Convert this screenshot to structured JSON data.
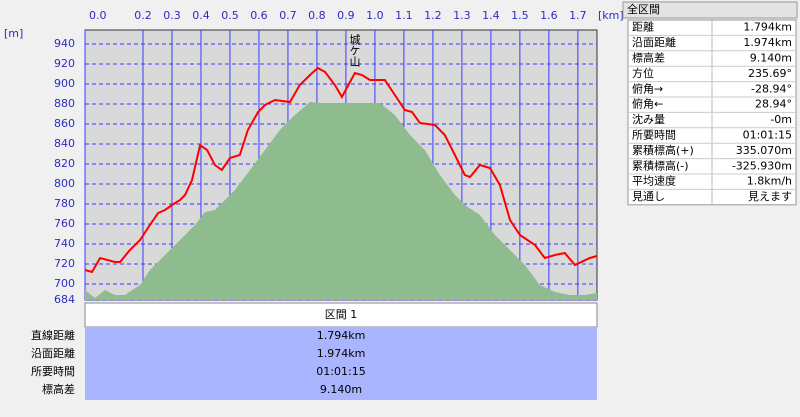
{
  "chart_data": {
    "type": "line",
    "x_unit_label": "[km]",
    "y_unit_label": "[m]",
    "annotation": "城ケ山",
    "grid": true,
    "xlim": [
      0,
      1.766
    ],
    "ylim": [
      684,
      954
    ],
    "xticks": [
      {
        "value": 0,
        "label": "0.0"
      },
      0.2,
      0.3,
      0.4,
      0.5,
      0.6,
      0.7,
      0.8,
      0.9,
      {
        "value": 1,
        "label": "1.0"
      },
      1.1,
      1.2,
      1.3,
      1.4,
      1.5,
      1.6,
      1.7
    ],
    "yticks": [
      684,
      700,
      720,
      740,
      760,
      780,
      800,
      820,
      840,
      860,
      880,
      900,
      920,
      940
    ],
    "series": [
      {
        "type": "area",
        "color": "#8fbc8f",
        "x": [
          0,
          0.034,
          0.069,
          0.103,
          0.138,
          0.19,
          0.224,
          0.276,
          0.328,
          0.379,
          0.414,
          0.448,
          0.483,
          0.517,
          0.569,
          0.621,
          0.672,
          0.724,
          0.776,
          0.81,
          0.879,
          1.017,
          1.069,
          1.121,
          1.172,
          1.224,
          1.276,
          1.31,
          1.362,
          1.414,
          1.466,
          1.517,
          1.569,
          1.621,
          1.672,
          1.724,
          1.766
        ],
        "values": [
          694,
          686,
          694,
          689,
          689,
          699,
          714,
          729,
          744,
          759,
          772,
          774,
          784,
          794,
          814,
          834,
          854,
          869,
          882,
          881,
          881,
          881,
          869,
          849,
          834,
          809,
          789,
          779,
          769,
          749,
          734,
          719,
          699,
          692,
          689,
          689,
          691
        ]
      },
      {
        "type": "line",
        "color": "#ff0000",
        "x": [
          0,
          0.024,
          0.052,
          0.103,
          0.121,
          0.155,
          0.19,
          0.224,
          0.252,
          0.276,
          0.3,
          0.328,
          0.345,
          0.369,
          0.397,
          0.421,
          0.448,
          0.472,
          0.5,
          0.534,
          0.562,
          0.597,
          0.621,
          0.655,
          0.707,
          0.741,
          0.776,
          0.803,
          0.828,
          0.862,
          0.886,
          0.914,
          0.931,
          0.955,
          0.983,
          1.034,
          1.069,
          1.103,
          1.128,
          1.155,
          1.207,
          1.241,
          1.276,
          1.31,
          1.328,
          1.362,
          1.397,
          1.431,
          1.466,
          1.5,
          1.552,
          1.586,
          1.621,
          1.655,
          1.69,
          1.741,
          1.766
        ],
        "values": [
          714,
          712,
          726,
          722,
          722,
          734,
          744,
          759,
          771,
          774,
          779,
          784,
          789,
          804,
          839,
          834,
          819,
          814,
          826,
          829,
          854,
          872,
          879,
          884,
          882,
          899,
          909,
          916,
          912,
          899,
          887,
          902,
          911,
          909,
          904,
          904,
          889,
          874,
          872,
          861,
          859,
          849,
          829,
          809,
          807,
          819,
          816,
          799,
          764,
          749,
          739,
          726,
          729,
          731,
          719,
          726,
          728
        ]
      }
    ]
  },
  "segment": {
    "title": "区間 1",
    "rows": [
      [
        "直線距離",
        "1.794km"
      ],
      [
        "沿面距離",
        "1.974km"
      ],
      [
        "所要時間",
        "01:01:15"
      ],
      [
        "標高差",
        "9.140m"
      ]
    ]
  },
  "summary": {
    "title": "全区間",
    "rows": [
      [
        "距離",
        "1.794km"
      ],
      [
        "沿面距離",
        "1.974km"
      ],
      [
        "標高差",
        "9.140m"
      ],
      [
        "方位",
        "235.69°"
      ],
      [
        "俯角→",
        "-28.94°"
      ],
      [
        "俯角←",
        "28.94°"
      ],
      [
        "沈み量",
        "-0m"
      ],
      [
        "所要時間",
        "01:01:15"
      ],
      [
        "累積標高(+)",
        "335.070m"
      ],
      [
        "累積標高(-)",
        "-325.930m"
      ],
      [
        "平均速度",
        "1.8km/h"
      ],
      [
        "見通し",
        "見えます"
      ]
    ]
  }
}
